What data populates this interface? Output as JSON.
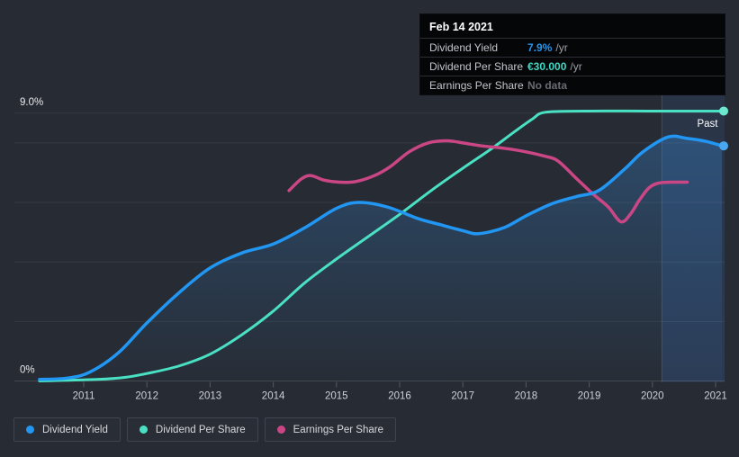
{
  "theme": {
    "background": "#272b33",
    "grid_color": "rgba(255,255,255,0.07)",
    "baseline_color": "rgba(255,255,255,0.14)",
    "tick_color": "rgba(255,255,255,0.22)",
    "axis_text_color": "#ced2d8",
    "past_band_color": "rgba(64,135,245,0.13)",
    "past_band_edge_color": "rgba(160,190,235,0.20)",
    "area_fill_top": "rgba(56,140,220,0.32)",
    "area_fill_bottom": "rgba(56,140,220,0.02)"
  },
  "tooltip": {
    "date": "Feb 14 2021",
    "rows": [
      {
        "label": "Dividend Yield",
        "value": "7.9%",
        "suffix": "/yr",
        "value_color": "#2196f3"
      },
      {
        "label": "Dividend Per Share",
        "value": "€30.000",
        "suffix": "/yr",
        "value_color": "#3fd9c5"
      },
      {
        "label": "Earnings Per Share",
        "value": "No data",
        "suffix": "",
        "value_color": "#676c73"
      }
    ]
  },
  "legend": {
    "items": [
      {
        "label": "Dividend Yield",
        "color": "#2196f3"
      },
      {
        "label": "Dividend Per Share",
        "color": "#4ae0c3"
      },
      {
        "label": "Earnings Per Share",
        "color": "#cb4684"
      }
    ]
  },
  "chart_data": {
    "type": "line",
    "title": "Dividend history (past)",
    "x_tick_labels": [
      "2011",
      "2012",
      "2013",
      "2014",
      "2015",
      "2016",
      "2017",
      "2018",
      "2019",
      "2020",
      "2021"
    ],
    "x_tick_years": [
      2011,
      2012,
      2013,
      2014,
      2015,
      2016,
      2017,
      2018,
      2019,
      2020,
      2021
    ],
    "y_axis": {
      "top_label": "9.0%",
      "bottom_label": "0%",
      "unit": "% (left axis, Dividend Yield)",
      "range": [
        0,
        9
      ],
      "gridlines_pct": [
        0,
        2,
        4,
        6,
        8,
        9
      ]
    },
    "past_label": "Past",
    "past_band_start_year": 2020.15,
    "legend_position": "bottom",
    "series": [
      {
        "name": "Dividend Yield",
        "color": "#2196f3",
        "style": "area-line",
        "end_dot": true,
        "dot_color": "#4aa8f0",
        "unit": "%",
        "points": [
          [
            2010.3,
            0.05
          ],
          [
            2010.75,
            0.1
          ],
          [
            2011.1,
            0.3
          ],
          [
            2011.55,
            0.95
          ],
          [
            2012.0,
            1.95
          ],
          [
            2012.5,
            2.95
          ],
          [
            2013.0,
            3.8
          ],
          [
            2013.5,
            4.3
          ],
          [
            2014.0,
            4.6
          ],
          [
            2014.5,
            5.15
          ],
          [
            2015.0,
            5.8
          ],
          [
            2015.35,
            6.0
          ],
          [
            2015.8,
            5.85
          ],
          [
            2016.3,
            5.45
          ],
          [
            2016.65,
            5.25
          ],
          [
            2017.0,
            5.05
          ],
          [
            2017.25,
            4.95
          ],
          [
            2017.65,
            5.15
          ],
          [
            2018.0,
            5.55
          ],
          [
            2018.4,
            5.95
          ],
          [
            2018.8,
            6.2
          ],
          [
            2019.15,
            6.4
          ],
          [
            2019.55,
            7.1
          ],
          [
            2019.85,
            7.7
          ],
          [
            2020.25,
            8.2
          ],
          [
            2020.55,
            8.15
          ],
          [
            2020.85,
            8.05
          ],
          [
            2021.1,
            7.9
          ]
        ]
      },
      {
        "name": "Dividend Per Share",
        "color": "#4ae0c3",
        "style": "line",
        "end_dot": true,
        "dot_color": "#6ce8cf",
        "unit": "display units of left axis (own hidden € scale; plateau = €30.000/yr)",
        "points": [
          [
            2010.3,
            0.0
          ],
          [
            2011.2,
            0.05
          ],
          [
            2011.65,
            0.12
          ],
          [
            2012.0,
            0.25
          ],
          [
            2012.5,
            0.5
          ],
          [
            2013.0,
            0.9
          ],
          [
            2013.5,
            1.55
          ],
          [
            2014.0,
            2.35
          ],
          [
            2014.5,
            3.3
          ],
          [
            2015.0,
            4.1
          ],
          [
            2015.5,
            4.85
          ],
          [
            2016.0,
            5.6
          ],
          [
            2016.5,
            6.4
          ],
          [
            2017.0,
            7.15
          ],
          [
            2017.45,
            7.8
          ],
          [
            2017.8,
            8.35
          ],
          [
            2018.1,
            8.8
          ],
          [
            2018.3,
            9.03
          ],
          [
            2018.9,
            9.07
          ],
          [
            2020.0,
            9.07
          ],
          [
            2021.1,
            9.07
          ]
        ]
      },
      {
        "name": "Earnings Per Share",
        "color": "#cb4684",
        "style": "line",
        "end_dot": false,
        "unit": "display units of left axis (no € axis shown; series ends mid-2020, 'No data' after)",
        "points": [
          [
            2014.25,
            6.4
          ],
          [
            2014.45,
            6.8
          ],
          [
            2014.6,
            6.9
          ],
          [
            2014.8,
            6.75
          ],
          [
            2015.05,
            6.68
          ],
          [
            2015.3,
            6.7
          ],
          [
            2015.6,
            6.9
          ],
          [
            2015.85,
            7.2
          ],
          [
            2016.15,
            7.7
          ],
          [
            2016.45,
            8.0
          ],
          [
            2016.75,
            8.07
          ],
          [
            2017.0,
            8.0
          ],
          [
            2017.3,
            7.9
          ],
          [
            2017.65,
            7.82
          ],
          [
            2018.0,
            7.7
          ],
          [
            2018.3,
            7.55
          ],
          [
            2018.5,
            7.4
          ],
          [
            2018.8,
            6.8
          ],
          [
            2019.05,
            6.3
          ],
          [
            2019.3,
            5.85
          ],
          [
            2019.5,
            5.35
          ],
          [
            2019.65,
            5.6
          ],
          [
            2019.8,
            6.1
          ],
          [
            2019.95,
            6.5
          ],
          [
            2020.1,
            6.65
          ],
          [
            2020.3,
            6.68
          ],
          [
            2020.55,
            6.68
          ]
        ]
      }
    ]
  }
}
